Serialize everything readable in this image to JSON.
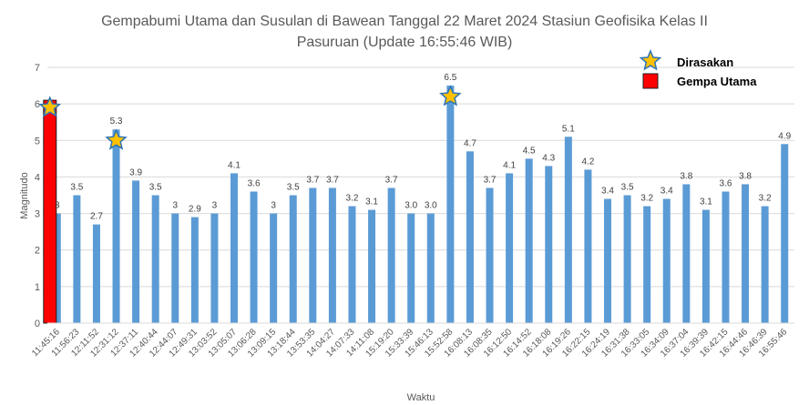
{
  "chart_data": {
    "type": "bar",
    "title_line1": "Gempabumi Utama dan Susulan di Bawean Tanggal 22 Maret 2024 Stasiun Geofisika Kelas II",
    "title_line2": "Pasuruan (Update 16:55:46 WIB)",
    "xlabel": "Waktu",
    "ylabel": "Magnitudo",
    "ylim": [
      0,
      7
    ],
    "yticks": [
      "0",
      "1",
      "2",
      "3",
      "4",
      "5",
      "6",
      "7"
    ],
    "grid": true,
    "categories": [
      "11:45:16",
      "11:56:23",
      "12:11:52",
      "12:31:12",
      "12:37:11",
      "12:40:44",
      "12:44:07",
      "12:49:31",
      "13:03:52",
      "13:05:07",
      "13:06:28",
      "13:09:15",
      "13:18:44",
      "13:53:35",
      "14:04:27",
      "14:07:33",
      "14:11:08",
      "15:19:20",
      "15:33:39",
      "15:46:13",
      "15:52:58",
      "16:08:13",
      "16:08:35",
      "16:12:50",
      "16:14:52",
      "16:18:08",
      "16:19:26",
      "16:22:15",
      "16:24:19",
      "16:31:38",
      "16:33:05",
      "16:34:09",
      "16:37:04",
      "16:39:39",
      "16:42:15",
      "16:44:46",
      "16:46:39",
      "16:55:46"
    ],
    "values": [
      3,
      3.5,
      2.7,
      5.3,
      3.9,
      3.5,
      3,
      2.9,
      3,
      4.1,
      3.6,
      3,
      3.5,
      3.7,
      3.7,
      3.2,
      3.1,
      3.7,
      3.0,
      3.0,
      6.5,
      4.7,
      3.7,
      4.1,
      4.5,
      4.3,
      5.1,
      4.2,
      3.4,
      3.5,
      3.2,
      3.4,
      3.8,
      3.1,
      3.6,
      3.8,
      3.2,
      4.9
    ],
    "value_labels": [
      "3",
      "3.5",
      "2.7",
      "5.3",
      "3.9",
      "3.5",
      "3",
      "2.9",
      "3",
      "4.1",
      "3.6",
      "3",
      "3.5",
      "3.7",
      "3.7",
      "3.2",
      "3.1",
      "3.7",
      "3.0",
      "3.0",
      "6.5",
      "4.7",
      "3.7",
      "4.1",
      "4.5",
      "4.3",
      "5.1",
      "4.2",
      "3.4",
      "3.5",
      "3.2",
      "3.4",
      "3.8",
      "3.1",
      "3.6",
      "3.8",
      "3.2",
      "4.9"
    ],
    "bar_color": "#5B9BD5",
    "main_shock": {
      "value": 6.1,
      "color": "#FF0000",
      "border": "#1F1F1F"
    },
    "felt_markers": [
      {
        "category_index": 0,
        "value": 5.9
      },
      {
        "category_index": 3,
        "value": 5.0
      },
      {
        "category_index": 20,
        "value": 6.2
      }
    ],
    "legend": {
      "placement": "top-right",
      "felt_label": "Dirasakan",
      "main_label": "Gempa Utama",
      "star_fill": "#FFC000",
      "star_stroke": "#2E75B6"
    }
  }
}
